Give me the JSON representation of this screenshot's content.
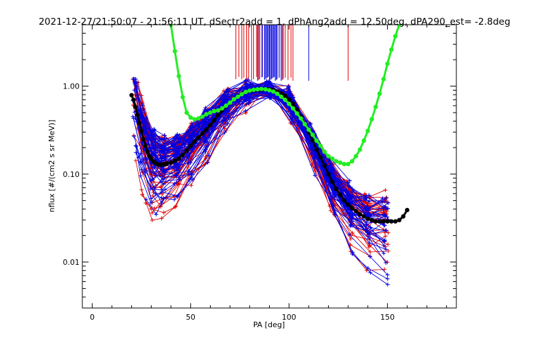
{
  "chart_data": {
    "type": "line",
    "title": "2021-12-27/21:50:07 - 21:56:11 UT, dSectr2add = 1, dPhAng2add = 12.50deg, dPA290_est=  -2.8deg",
    "xlabel": "PA [deg]",
    "ylabel": "nflux [#/(cm2 s sr MeV)]",
    "xlim": [
      -5,
      185
    ],
    "ylim": [
      0.003,
      5
    ],
    "y_scale": "log",
    "grid": false,
    "x_ticks": [
      {
        "value": 0,
        "label": "0"
      },
      {
        "value": 50,
        "label": "50"
      },
      {
        "value": 100,
        "label": "100"
      },
      {
        "value": 150,
        "label": "150"
      }
    ],
    "y_ticks": [
      {
        "value": 0.01,
        "label": "0.01"
      },
      {
        "value": 0.1,
        "label": "0.10"
      },
      {
        "value": 1,
        "label": "1.00"
      }
    ],
    "colors": {
      "red": "#e00000",
      "blue": "#0000e0",
      "green": "#22ee22",
      "black": "#000000"
    },
    "fit_curves": [
      {
        "color": "#000000",
        "x": [
          20,
          21,
          22,
          23,
          24,
          25,
          26,
          27,
          28,
          29,
          30,
          31,
          32,
          33,
          34,
          35,
          36,
          37,
          38,
          40,
          42,
          44,
          46,
          48,
          50,
          52,
          54,
          56,
          58,
          60,
          62,
          64,
          66,
          68,
          70,
          72,
          74,
          76,
          78,
          80,
          82,
          84,
          86,
          88,
          90,
          92,
          94,
          96,
          98,
          100,
          102,
          104,
          106,
          108,
          110,
          112,
          114,
          116,
          118,
          120,
          122,
          124,
          126,
          128,
          130,
          132,
          134,
          136,
          138,
          140,
          142,
          144,
          146,
          148,
          150,
          152,
          154,
          156,
          158,
          160
        ],
        "y": [
          0.79,
          0.7,
          0.58,
          0.47,
          0.38,
          0.31,
          0.25,
          0.21,
          0.18,
          0.16,
          0.15,
          0.14,
          0.135,
          0.13,
          0.128,
          0.128,
          0.129,
          0.13,
          0.132,
          0.135,
          0.142,
          0.15,
          0.165,
          0.185,
          0.21,
          0.235,
          0.26,
          0.29,
          0.32,
          0.36,
          0.41,
          0.47,
          0.53,
          0.59,
          0.65,
          0.71,
          0.77,
          0.82,
          0.86,
          0.88,
          0.9,
          0.91,
          0.915,
          0.92,
          0.92,
          0.9,
          0.87,
          0.83,
          0.78,
          0.71,
          0.63,
          0.54,
          0.45,
          0.37,
          0.3,
          0.24,
          0.19,
          0.155,
          0.125,
          0.1,
          0.082,
          0.068,
          0.058,
          0.05,
          0.045,
          0.041,
          0.038,
          0.035,
          0.033,
          0.031,
          0.03,
          0.029,
          0.029,
          0.029,
          0.029,
          0.029,
          0.029,
          0.03,
          0.033,
          0.039
        ]
      },
      {
        "color": "#22ee22",
        "x": [
          40,
          42,
          44,
          46,
          48,
          50,
          52,
          54,
          56,
          58,
          60,
          62,
          64,
          66,
          68,
          70,
          72,
          74,
          76,
          78,
          80,
          82,
          84,
          86,
          88,
          90,
          92,
          94,
          96,
          98,
          100,
          102,
          104,
          106,
          108,
          110,
          112,
          114,
          116,
          118,
          120,
          122,
          124,
          126,
          128,
          130,
          132,
          134,
          136,
          138,
          140,
          142,
          144,
          146,
          148,
          150,
          152,
          154,
          156
        ],
        "y": [
          5,
          2.5,
          1.3,
          0.75,
          0.5,
          0.44,
          0.42,
          0.43,
          0.45,
          0.48,
          0.5,
          0.52,
          0.53,
          0.56,
          0.6,
          0.65,
          0.71,
          0.76,
          0.81,
          0.86,
          0.89,
          0.91,
          0.92,
          0.93,
          0.92,
          0.9,
          0.87,
          0.82,
          0.76,
          0.7,
          0.63,
          0.56,
          0.49,
          0.43,
          0.37,
          0.32,
          0.28,
          0.24,
          0.21,
          0.18,
          0.16,
          0.15,
          0.14,
          0.135,
          0.13,
          0.13,
          0.14,
          0.16,
          0.19,
          0.24,
          0.31,
          0.42,
          0.58,
          0.82,
          1.2,
          1.8,
          2.6,
          3.7,
          5
        ]
      }
    ],
    "vertical_marks": [
      {
        "color": "#e00000",
        "x": [
          73,
          74.5,
          76,
          77,
          78.5,
          79.5,
          81,
          82,
          83.5,
          84.5,
          86,
          95,
          96.5,
          98,
          99.5,
          101,
          102,
          130
        ]
      },
      {
        "color": "#0000e0",
        "x": [
          84,
          85,
          86.5,
          87.5,
          88,
          88.5,
          89,
          89.5,
          90,
          90.5,
          91,
          91.5,
          92,
          92.5,
          93,
          93.5,
          94,
          95,
          96,
          97,
          110
        ]
      }
    ],
    "series": [
      {
        "name": "",
        "color": "#e00000",
        "seed": 11,
        "count": 50
      },
      {
        "name": "",
        "color": "#0000e0",
        "seed": 37,
        "count": 55
      }
    ]
  }
}
